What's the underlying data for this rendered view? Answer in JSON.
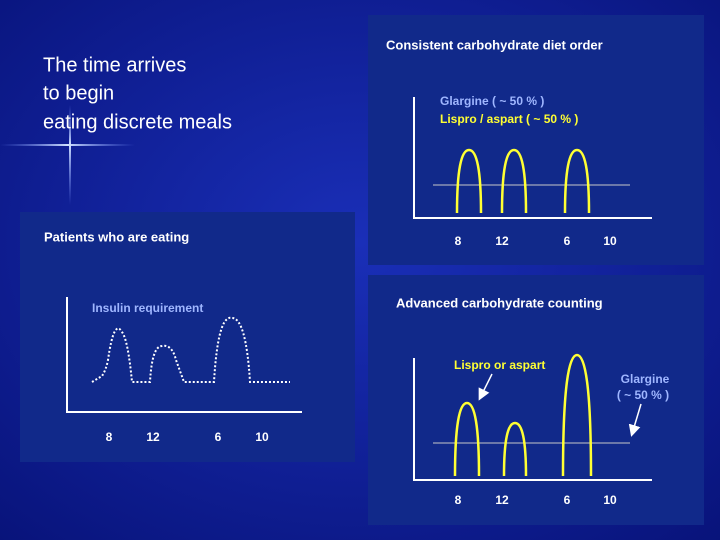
{
  "title": {
    "lines": [
      "The time arrives",
      "to begin",
      "eating discrete meals"
    ]
  },
  "panels": [
    {
      "title": "Patients who are eating",
      "label": "Insulin requirement",
      "x_labels": [
        "8",
        "12",
        "6",
        "10"
      ]
    },
    {
      "title": "Consistent carbohydrate diet order",
      "legend": [
        "Glargine ( ~ 50 % )",
        "Lispro / aspart  ( ~ 50 % )"
      ],
      "x_labels": [
        "8",
        "12",
        "6",
        "10"
      ]
    },
    {
      "title": "Advanced carbohydrate counting",
      "labels": [
        "Lispro or aspart",
        "Glargine",
        "( ~ 50 % )"
      ],
      "x_labels": [
        "8",
        "12",
        "6",
        "10"
      ]
    }
  ]
}
